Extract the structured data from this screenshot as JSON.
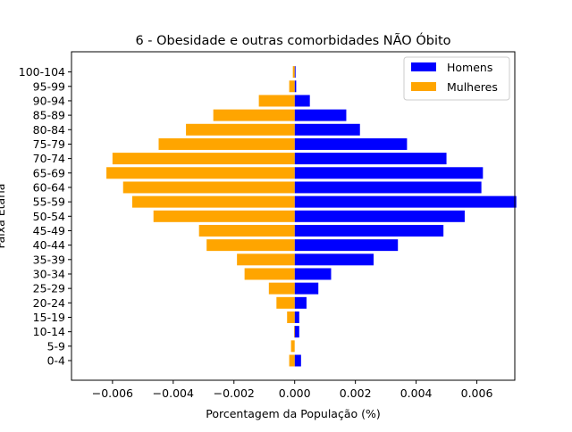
{
  "chart_data": {
    "type": "bar",
    "orientation": "horizontal",
    "title": "6 - Obesidade e outras comorbidades NÃO Óbito",
    "xlabel": "Porcentagem da População (%)",
    "ylabel": "Faixa Etária",
    "xlim": [
      -0.00735,
      0.00725
    ],
    "xticks": [
      -0.006,
      -0.004,
      -0.002,
      0.0,
      0.002,
      0.004,
      0.006
    ],
    "xtick_labels": [
      "−0.006",
      "−0.004",
      "−0.002",
      "0.000",
      "0.002",
      "0.004",
      "0.006"
    ],
    "categories": [
      "0-4",
      "5-9",
      "10-14",
      "15-19",
      "20-24",
      "25-29",
      "30-34",
      "35-39",
      "40-44",
      "45-49",
      "50-54",
      "55-59",
      "60-64",
      "65-69",
      "70-74",
      "75-79",
      "80-84",
      "85-89",
      "90-94",
      "95-99",
      "100-104"
    ],
    "series": [
      {
        "name": "Homens",
        "color": "#0000ff",
        "values": [
          0.00021,
          0.0,
          0.00015,
          0.00015,
          0.00039,
          0.00078,
          0.0012,
          0.0026,
          0.0034,
          0.0049,
          0.0056,
          0.0073,
          0.00615,
          0.0062,
          0.005,
          0.0037,
          0.00215,
          0.0017,
          0.0005,
          5e-05,
          3e-05
        ]
      },
      {
        "name": "Mulheres",
        "color": "#ffa500",
        "values": [
          -0.00018,
          -0.00012,
          -2e-05,
          -0.00025,
          -0.0006,
          -0.00085,
          -0.00165,
          -0.0019,
          -0.0029,
          -0.00315,
          -0.00465,
          -0.00535,
          -0.00565,
          -0.0062,
          -0.006,
          -0.00448,
          -0.00358,
          -0.00268,
          -0.00118,
          -0.00018,
          -6e-05
        ]
      }
    ],
    "legend_position": "top-right",
    "grid": false
  }
}
